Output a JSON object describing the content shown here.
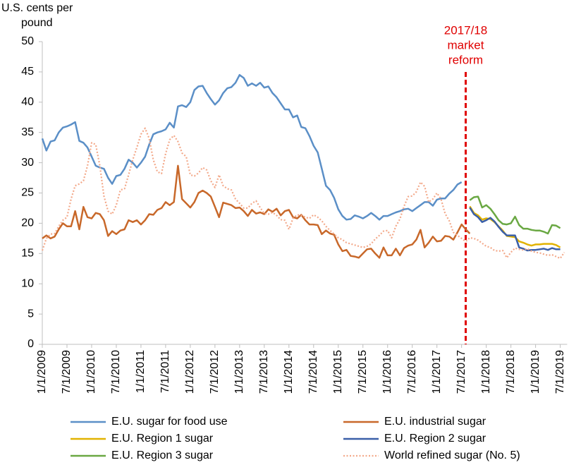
{
  "chart_data": {
    "type": "line",
    "y_label": [
      "U.S. cents per",
      "pound"
    ],
    "annotation": {
      "text": [
        "2017/18",
        "market",
        "reform"
      ],
      "x": "8/1/2017",
      "color": "#e00000"
    },
    "x": [
      "1/1/2009",
      "2/1/2009",
      "3/1/2009",
      "4/1/2009",
      "5/1/2009",
      "6/1/2009",
      "7/1/2009",
      "8/1/2009",
      "9/1/2009",
      "10/1/2009",
      "11/1/2009",
      "12/1/2009",
      "1/1/2010",
      "2/1/2010",
      "3/1/2010",
      "4/1/2010",
      "5/1/2010",
      "6/1/2010",
      "7/1/2010",
      "8/1/2010",
      "9/1/2010",
      "10/1/2010",
      "11/1/2010",
      "12/1/2010",
      "1/1/2011",
      "2/1/2011",
      "3/1/2011",
      "4/1/2011",
      "5/1/2011",
      "6/1/2011",
      "7/1/2011",
      "8/1/2011",
      "9/1/2011",
      "10/1/2011",
      "11/1/2011",
      "12/1/2011",
      "1/1/2012",
      "2/1/2012",
      "3/1/2012",
      "4/1/2012",
      "5/1/2012",
      "6/1/2012",
      "7/1/2012",
      "8/1/2012",
      "9/1/2012",
      "10/1/2012",
      "11/1/2012",
      "12/1/2012",
      "1/1/2013",
      "2/1/2013",
      "3/1/2013",
      "4/1/2013",
      "5/1/2013",
      "6/1/2013",
      "7/1/2013",
      "8/1/2013",
      "9/1/2013",
      "10/1/2013",
      "11/1/2013",
      "12/1/2013",
      "1/1/2014",
      "2/1/2014",
      "3/1/2014",
      "4/1/2014",
      "5/1/2014",
      "6/1/2014",
      "7/1/2014",
      "8/1/2014",
      "9/1/2014",
      "10/1/2014",
      "11/1/2014",
      "12/1/2014",
      "1/1/2015",
      "2/1/2015",
      "3/1/2015",
      "4/1/2015",
      "5/1/2015",
      "6/1/2015",
      "7/1/2015",
      "8/1/2015",
      "9/1/2015",
      "10/1/2015",
      "11/1/2015",
      "12/1/2015",
      "1/1/2016",
      "2/1/2016",
      "3/1/2016",
      "4/1/2016",
      "5/1/2016",
      "6/1/2016",
      "7/1/2016",
      "8/1/2016",
      "9/1/2016",
      "10/1/2016",
      "11/1/2016",
      "12/1/2016",
      "1/1/2017",
      "2/1/2017",
      "3/1/2017",
      "4/1/2017",
      "5/1/2017",
      "6/1/2017",
      "7/1/2017",
      "8/1/2017",
      "9/1/2017",
      "10/1/2017",
      "11/1/2017",
      "12/1/2017",
      "1/1/2018",
      "2/1/2018",
      "3/1/2018",
      "4/1/2018",
      "5/1/2018",
      "6/1/2018",
      "7/1/2018",
      "8/1/2018",
      "9/1/2018",
      "10/1/2018",
      "11/1/2018",
      "12/1/2018",
      "1/1/2019",
      "2/1/2019",
      "3/1/2019",
      "4/1/2019",
      "5/1/2019",
      "6/1/2019",
      "7/1/2019",
      "8/1/2019"
    ],
    "xticks": [
      "1/1/2009",
      "7/1/2009",
      "1/1/2010",
      "7/1/2010",
      "1/1/2011",
      "7/1/2011",
      "1/1/2012",
      "7/1/2012",
      "1/1/2013",
      "7/1/2013",
      "1/1/2014",
      "7/1/2014",
      "1/1/2015",
      "7/1/2015",
      "1/1/2016",
      "7/1/2016",
      "1/1/2017",
      "7/1/2017",
      "1/1/2018",
      "7/1/2018",
      "1/1/2019",
      "7/1/2019"
    ],
    "ylim": [
      0,
      50
    ],
    "yticks": [
      0,
      5,
      10,
      15,
      20,
      25,
      30,
      35,
      40,
      45,
      50
    ],
    "series": [
      {
        "name": "E.U. sugar for food use",
        "color": "#5b8fc7",
        "dash": "solid",
        "values": [
          34,
          32,
          33.5,
          33.7,
          35,
          35.8,
          36,
          36.3,
          36.7,
          33.6,
          33.3,
          32.5,
          31,
          29.5,
          29.2,
          29,
          27.5,
          26.5,
          27.8,
          28,
          29,
          30.5,
          30,
          29.2,
          30,
          31,
          33,
          34.7,
          35,
          35.2,
          35.5,
          36.6,
          35.8,
          39.3,
          39.5,
          39.2,
          40,
          42,
          42.6,
          42.7,
          41.5,
          40.5,
          39.6,
          40.3,
          41.5,
          42.3,
          42.5,
          43.2,
          44.5,
          44,
          42.7,
          43.1,
          42.7,
          43.2,
          42.4,
          42.6,
          41.5,
          40.8,
          39.8,
          38.8,
          38.8,
          37.5,
          37.8,
          35.9,
          35.7,
          34.4,
          32.8,
          31.7,
          29,
          26.2,
          25.5,
          24.2,
          22.3,
          21.2,
          20.6,
          20.7,
          21.3,
          21.1,
          20.8,
          21.2,
          21.7,
          21.2,
          20.6,
          21.2,
          21.2,
          21.5,
          21.8,
          22,
          22.3,
          22.4,
          22,
          22.5,
          23,
          23.5,
          23.5,
          22.9,
          23.9,
          24.1,
          24.1,
          24.9,
          25.5,
          26.4,
          26.8,
          null,
          null,
          null,
          null,
          null,
          null,
          null,
          null,
          null,
          null,
          null,
          null,
          null,
          null,
          null,
          null,
          null,
          null,
          null,
          null,
          null,
          null,
          null,
          null,
          null
        ]
      },
      {
        "name": "E.U. industrial sugar",
        "color": "#c8682a",
        "dash": "solid",
        "values": [
          17.5,
          18,
          17.5,
          17.8,
          19,
          20,
          19.5,
          19.5,
          22,
          19,
          22.7,
          21,
          20.8,
          21.7,
          21.5,
          20.5,
          17.9,
          18.7,
          18.2,
          18.8,
          19,
          20.5,
          20.2,
          20.5,
          19.8,
          20.5,
          21.5,
          21.4,
          22.2,
          22.5,
          23.5,
          23,
          23.5,
          29.5,
          24,
          23.3,
          22.6,
          23.5,
          25,
          25.4,
          25,
          24.4,
          22.7,
          21,
          23.4,
          23.2,
          23,
          22.5,
          22.6,
          22,
          21.2,
          22.2,
          21.6,
          21.8,
          21.5,
          22.3,
          21.9,
          22.4,
          21.3,
          22,
          22.2,
          21,
          20.8,
          21.4,
          20.5,
          19.8,
          19.8,
          19.7,
          18.2,
          18.8,
          18.3,
          18.1,
          16.5,
          15.4,
          15.6,
          14.6,
          14.5,
          14.3,
          15,
          15.7,
          15.8,
          15,
          14.3,
          16,
          14.7,
          14.7,
          15.8,
          14.7,
          15.9,
          16.3,
          16.5,
          17.3,
          18.9,
          16,
          16.8,
          17.8,
          17,
          17.1,
          17.9,
          17.8,
          17.3,
          18.5,
          19.8,
          19,
          18.3,
          null,
          null,
          null,
          null,
          null,
          null,
          null,
          null,
          null,
          null,
          null,
          null,
          null,
          null,
          null,
          null,
          null,
          null,
          null,
          null,
          null,
          null,
          null
        ]
      },
      {
        "name": "E.U. Region 1 sugar",
        "color": "#e1b200",
        "dash": "solid",
        "values": [
          null,
          null,
          null,
          null,
          null,
          null,
          null,
          null,
          null,
          null,
          null,
          null,
          null,
          null,
          null,
          null,
          null,
          null,
          null,
          null,
          null,
          null,
          null,
          null,
          null,
          null,
          null,
          null,
          null,
          null,
          null,
          null,
          null,
          null,
          null,
          null,
          null,
          null,
          null,
          null,
          null,
          null,
          null,
          null,
          null,
          null,
          null,
          null,
          null,
          null,
          null,
          null,
          null,
          null,
          null,
          null,
          null,
          null,
          null,
          null,
          null,
          null,
          null,
          null,
          null,
          null,
          null,
          null,
          null,
          null,
          null,
          null,
          null,
          null,
          null,
          null,
          null,
          null,
          null,
          null,
          null,
          null,
          null,
          null,
          null,
          null,
          null,
          null,
          null,
          null,
          null,
          null,
          null,
          null,
          null,
          null,
          null,
          null,
          null,
          null,
          null,
          null,
          null,
          null,
          22.8,
          21.7,
          21.3,
          20.6,
          20.8,
          20.7,
          20.2,
          19.5,
          18.8,
          17.9,
          17.8,
          17.7,
          17,
          16.8,
          16.5,
          16.3,
          16.5,
          16.5,
          16.6,
          16.6,
          16.6,
          16.4,
          16,
          null
        ]
      },
      {
        "name": "E.U. Region 2 sugar",
        "color": "#3a5fa8",
        "dash": "solid",
        "values": [
          null,
          null,
          null,
          null,
          null,
          null,
          null,
          null,
          null,
          null,
          null,
          null,
          null,
          null,
          null,
          null,
          null,
          null,
          null,
          null,
          null,
          null,
          null,
          null,
          null,
          null,
          null,
          null,
          null,
          null,
          null,
          null,
          null,
          null,
          null,
          null,
          null,
          null,
          null,
          null,
          null,
          null,
          null,
          null,
          null,
          null,
          null,
          null,
          null,
          null,
          null,
          null,
          null,
          null,
          null,
          null,
          null,
          null,
          null,
          null,
          null,
          null,
          null,
          null,
          null,
          null,
          null,
          null,
          null,
          null,
          null,
          null,
          null,
          null,
          null,
          null,
          null,
          null,
          null,
          null,
          null,
          null,
          null,
          null,
          null,
          null,
          null,
          null,
          null,
          null,
          null,
          null,
          null,
          null,
          null,
          null,
          null,
          null,
          null,
          null,
          null,
          null,
          null,
          null,
          22.6,
          21.5,
          21,
          20.2,
          20.5,
          20.9,
          20.3,
          19.4,
          18.6,
          18,
          18,
          18,
          16,
          15.8,
          15.5,
          15.6,
          15.6,
          15.7,
          15.8,
          15.6,
          15.9,
          15.7,
          15.7,
          null
        ]
      },
      {
        "name": "E.U. Region 3 sugar",
        "color": "#6aa843",
        "dash": "solid",
        "values": [
          null,
          null,
          null,
          null,
          null,
          null,
          null,
          null,
          null,
          null,
          null,
          null,
          null,
          null,
          null,
          null,
          null,
          null,
          null,
          null,
          null,
          null,
          null,
          null,
          null,
          null,
          null,
          null,
          null,
          null,
          null,
          null,
          null,
          null,
          null,
          null,
          null,
          null,
          null,
          null,
          null,
          null,
          null,
          null,
          null,
          null,
          null,
          null,
          null,
          null,
          null,
          null,
          null,
          null,
          null,
          null,
          null,
          null,
          null,
          null,
          null,
          null,
          null,
          null,
          null,
          null,
          null,
          null,
          null,
          null,
          null,
          null,
          null,
          null,
          null,
          null,
          null,
          null,
          null,
          null,
          null,
          null,
          null,
          null,
          null,
          null,
          null,
          null,
          null,
          null,
          null,
          null,
          null,
          null,
          null,
          null,
          null,
          null,
          null,
          null,
          null,
          null,
          null,
          null,
          23.8,
          24.3,
          24.4,
          22.6,
          23,
          22.4,
          21.5,
          20.5,
          19.9,
          19.8,
          20,
          21.1,
          19.7,
          19.1,
          19.1,
          18.9,
          18.8,
          18.8,
          18.6,
          18.3,
          19.7,
          19.6,
          19.2,
          null
        ]
      },
      {
        "name": "World refined sugar (No. 5)",
        "color": "#f3a98a",
        "dash": "dotted",
        "values": [
          15.5,
          17.5,
          18.2,
          18.3,
          19.5,
          20.5,
          21,
          24,
          26.2,
          26.5,
          27,
          29.5,
          33.3,
          33,
          29.5,
          24.5,
          22,
          21.5,
          23,
          25.5,
          25.7,
          28,
          30.5,
          32.5,
          34.7,
          35.7,
          34,
          30.5,
          28.5,
          28.2,
          31.5,
          33.8,
          34.5,
          33.5,
          31.6,
          31,
          28,
          27.8,
          28.3,
          29.2,
          28.8,
          27,
          25.9,
          28,
          26.2,
          25.7,
          25.5,
          24,
          23.3,
          22.5,
          22.5,
          23.3,
          23.7,
          22.6,
          21.6,
          21.5,
          21.8,
          21.3,
          20.6,
          20.5,
          19,
          20.8,
          21.4,
          21.3,
          21,
          20.8,
          21.4,
          21,
          20.4,
          19.5,
          18.8,
          18.2,
          17.6,
          17.3,
          16.8,
          16.6,
          16.4,
          16.2,
          16,
          16.2,
          16.6,
          17.4,
          18,
          18.7,
          18.8,
          17.6,
          19.5,
          20.7,
          22.8,
          24.4,
          24.5,
          25.2,
          26.8,
          26.1,
          23.5,
          24,
          25,
          24,
          21.6,
          20.4,
          18.5,
          18,
          17.5,
          17,
          17.6,
          17.5,
          17.2,
          16.7,
          16.2,
          16,
          15.5,
          15.4,
          15.5,
          14.3,
          15.2,
          15.9,
          15.7,
          15.6,
          15.8,
          15.4,
          15.2,
          15.1,
          14.9,
          14.7,
          14.8,
          14.5,
          14.2,
          15.2
        ]
      }
    ],
    "legend": "bottom"
  }
}
